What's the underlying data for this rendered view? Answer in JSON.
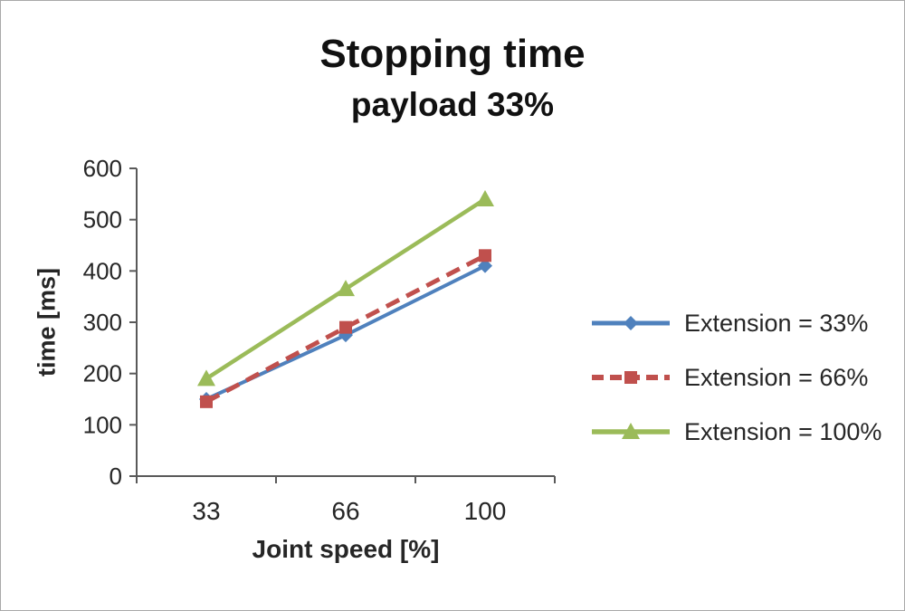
{
  "figure": {
    "title": "Stopping time",
    "subtitle": "payload 33%"
  },
  "chart_data": {
    "type": "line",
    "title": "Stopping time",
    "subtitle": "payload 33%",
    "xlabel": "Joint speed [%]",
    "ylabel": "time [ms]",
    "categories": [
      "33",
      "66",
      "100"
    ],
    "ylim": [
      0,
      600
    ],
    "ytick_step": 100,
    "grid": false,
    "legend_position": "right",
    "axis_color": "#595959",
    "text_color": "#262626",
    "series": [
      {
        "name": "Extension = 33%",
        "values": [
          150,
          275,
          410
        ],
        "color": "#4f81bd",
        "marker": "diamond",
        "dash": "solid",
        "width": 4
      },
      {
        "name": "Extension = 66%",
        "values": [
          145,
          290,
          430
        ],
        "color": "#c0504d",
        "marker": "square",
        "dash": "dashed",
        "width": 5
      },
      {
        "name": "Extension = 100%",
        "values": [
          190,
          365,
          540
        ],
        "color": "#9bbb59",
        "marker": "triangle",
        "dash": "solid",
        "width": 4.5
      }
    ]
  }
}
